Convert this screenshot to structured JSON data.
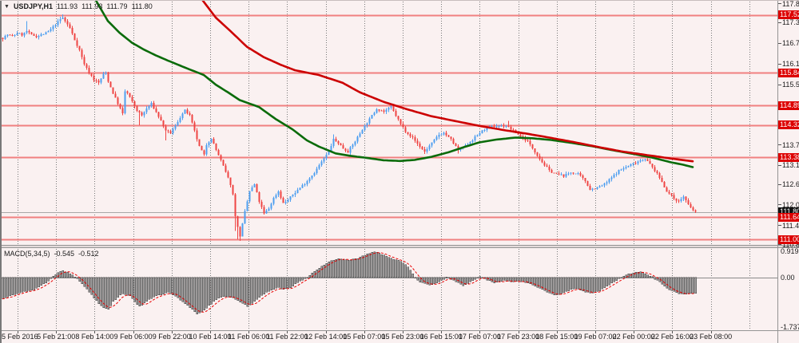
{
  "header": {
    "dropdown_icon": "▼",
    "symbol": "USDJPY,H1",
    "open": "111.93",
    "high": "111.93",
    "low": "111.79",
    "close": "111.80"
  },
  "macd_panel": {
    "label": "MACD(5,34,5)",
    "value1": "-0.545",
    "value2": "-0.512",
    "axis_labels": [
      "0.919",
      "0.00",
      "-1.737"
    ],
    "axis_values": [
      0.919,
      0.0,
      -1.737
    ]
  },
  "colors": {
    "background": "#faf1f1",
    "bull": "#4f9ff0",
    "bear": "#ef4544",
    "level_line": "#f08080",
    "level_badge_bg": "#dd0000",
    "current_badge_bg": "#101010",
    "ma_green": "#0a6b0a",
    "ma_red": "#cc0000",
    "macd_bar_fill": "#9a9a9a",
    "macd_bar_stroke": "#3d3d3d",
    "macd_signal": "#e80000",
    "grid": "#787878",
    "bid_line": "#a8a8a8",
    "text": "#1a1a1a"
  },
  "chart_data": {
    "type": "candlestick",
    "symbol": "USDJPY",
    "timeframe": "H1",
    "candle_count": 290,
    "price_axis": {
      "range_top": 117.96,
      "range_bottom": 110.77,
      "ticks": [
        117.85,
        117.3,
        116.7,
        116.1,
        115.5,
        113.75,
        113.15,
        112.6,
        112.0,
        111.4,
        110.85
      ],
      "level_lines": [
        117.52,
        115.84,
        114.89,
        114.32,
        113.38,
        111.64,
        111.0
      ],
      "current_price": 111.8
    },
    "time_axis": {
      "labels": [
        "5 Feb 2016",
        "5 Feb 21:00",
        "8 Feb 14:00",
        "9 Feb 06:00",
        "9 Feb 22:00",
        "10 Feb 14:00",
        "11 Feb 06:00",
        "11 Feb 22:00",
        "12 Feb 14:00",
        "15 Feb 07:00",
        "15 Feb 23:00",
        "16 Feb 15:00",
        "17 Feb 07:00",
        "17 Feb 23:00",
        "18 Feb 15:00",
        "19 Feb 07:00",
        "22 Feb 00:00",
        "22 Feb 16:00",
        "23 Feb 08:00"
      ]
    },
    "close_waypoints": [
      [
        0,
        116.85
      ],
      [
        2,
        116.95
      ],
      [
        4,
        116.9
      ],
      [
        6,
        117.0
      ],
      [
        8,
        116.95
      ],
      [
        10,
        117.05
      ],
      [
        12,
        116.95
      ],
      [
        14,
        116.9
      ],
      [
        16,
        116.95
      ],
      [
        18,
        117.0
      ],
      [
        20,
        117.1
      ],
      [
        22,
        117.25
      ],
      [
        24,
        117.4
      ],
      [
        25,
        117.45
      ],
      [
        26,
        117.35
      ],
      [
        28,
        117.15
      ],
      [
        30,
        116.8
      ],
      [
        32,
        116.5
      ],
      [
        34,
        116.1
      ],
      [
        36,
        115.85
      ],
      [
        38,
        115.65
      ],
      [
        40,
        115.55
      ],
      [
        42,
        115.8
      ],
      [
        43,
        115.85
      ],
      [
        44,
        115.6
      ],
      [
        46,
        115.25
      ],
      [
        48,
        114.95
      ],
      [
        50,
        114.65
      ],
      [
        51,
        115.3
      ],
      [
        52,
        115.25
      ],
      [
        54,
        115.0
      ],
      [
        56,
        114.75
      ],
      [
        58,
        114.6
      ],
      [
        60,
        114.8
      ],
      [
        62,
        114.95
      ],
      [
        64,
        114.7
      ],
      [
        66,
        114.45
      ],
      [
        68,
        114.15
      ],
      [
        70,
        114.1
      ],
      [
        72,
        114.3
      ],
      [
        74,
        114.55
      ],
      [
        76,
        114.75
      ],
      [
        78,
        114.6
      ],
      [
        80,
        114.15
      ],
      [
        82,
        113.7
      ],
      [
        84,
        113.45
      ],
      [
        85,
        113.75
      ],
      [
        87,
        113.95
      ],
      [
        89,
        113.6
      ],
      [
        91,
        113.3
      ],
      [
        93,
        112.95
      ],
      [
        95,
        112.6
      ],
      [
        96,
        112.3
      ],
      [
        97,
        111.7
      ],
      [
        98,
        111.35
      ],
      [
        99,
        111.1
      ],
      [
        100,
        111.45
      ],
      [
        101,
        111.8
      ],
      [
        102,
        112.1
      ],
      [
        103,
        112.4
      ],
      [
        105,
        112.6
      ],
      [
        107,
        112.1
      ],
      [
        109,
        111.75
      ],
      [
        111,
        111.9
      ],
      [
        113,
        112.2
      ],
      [
        115,
        112.4
      ],
      [
        117,
        112.05
      ],
      [
        119,
        112.15
      ],
      [
        121,
        112.3
      ],
      [
        124,
        112.5
      ],
      [
        127,
        112.7
      ],
      [
        130,
        112.95
      ],
      [
        133,
        113.25
      ],
      [
        136,
        113.55
      ],
      [
        138,
        113.9
      ],
      [
        140,
        113.8
      ],
      [
        142,
        113.65
      ],
      [
        144,
        113.55
      ],
      [
        147,
        113.85
      ],
      [
        150,
        114.2
      ],
      [
        153,
        114.5
      ],
      [
        156,
        114.8
      ],
      [
        159,
        114.72
      ],
      [
        162,
        114.85
      ],
      [
        164,
        114.6
      ],
      [
        166,
        114.35
      ],
      [
        168,
        114.15
      ],
      [
        171,
        113.95
      ],
      [
        174,
        113.7
      ],
      [
        176,
        113.55
      ],
      [
        179,
        113.8
      ],
      [
        182,
        114.05
      ],
      [
        184,
        114.1
      ],
      [
        187,
        113.9
      ],
      [
        190,
        113.6
      ],
      [
        193,
        113.72
      ],
      [
        196,
        113.9
      ],
      [
        199,
        114.1
      ],
      [
        202,
        114.25
      ],
      [
        206,
        114.3
      ],
      [
        210,
        114.3
      ],
      [
        213,
        114.15
      ],
      [
        216,
        114.0
      ],
      [
        219,
        113.85
      ],
      [
        222,
        113.55
      ],
      [
        225,
        113.25
      ],
      [
        228,
        113.0
      ],
      [
        231,
        112.9
      ],
      [
        234,
        112.85
      ],
      [
        237,
        112.95
      ],
      [
        240,
        112.9
      ],
      [
        243,
        112.7
      ],
      [
        245,
        112.45
      ],
      [
        248,
        112.5
      ],
      [
        251,
        112.6
      ],
      [
        254,
        112.8
      ],
      [
        257,
        113.0
      ],
      [
        260,
        113.1
      ],
      [
        263,
        113.2
      ],
      [
        266,
        113.3
      ],
      [
        268,
        113.35
      ],
      [
        271,
        113.1
      ],
      [
        274,
        112.8
      ],
      [
        277,
        112.4
      ],
      [
        280,
        112.2
      ],
      [
        282,
        112.1
      ],
      [
        284,
        112.25
      ],
      [
        286,
        112.0
      ],
      [
        288,
        111.85
      ],
      [
        289,
        111.8
      ]
    ],
    "wick_lows": [
      [
        57,
        114.32
      ],
      [
        68,
        113.88
      ],
      [
        97,
        111.25
      ],
      [
        98,
        111.0
      ],
      [
        99,
        110.95
      ],
      [
        100,
        111.1
      ],
      [
        176,
        113.48
      ],
      [
        190,
        113.5
      ]
    ],
    "wick_highs": [
      [
        10,
        117.35
      ],
      [
        25,
        117.54
      ],
      [
        138,
        114.05
      ],
      [
        162,
        114.95
      ],
      [
        211,
        114.45
      ]
    ],
    "ma_green": [
      [
        39,
        117.95
      ],
      [
        44,
        117.35
      ],
      [
        49,
        117.0
      ],
      [
        54,
        116.72
      ],
      [
        59,
        116.52
      ],
      [
        64,
        116.35
      ],
      [
        69,
        116.2
      ],
      [
        76,
        116.0
      ],
      [
        84,
        115.78
      ],
      [
        89,
        115.5
      ],
      [
        94,
        115.28
      ],
      [
        99,
        115.05
      ],
      [
        107,
        114.85
      ],
      [
        114,
        114.5
      ],
      [
        121,
        114.2
      ],
      [
        127,
        113.88
      ],
      [
        132,
        113.7
      ],
      [
        139,
        113.5
      ],
      [
        146,
        113.42
      ],
      [
        152,
        113.37
      ],
      [
        159,
        113.3
      ],
      [
        166,
        113.28
      ],
      [
        172,
        113.31
      ],
      [
        179,
        113.4
      ],
      [
        186,
        113.53
      ],
      [
        192,
        113.67
      ],
      [
        199,
        113.82
      ],
      [
        206,
        113.9
      ],
      [
        214,
        113.96
      ],
      [
        221,
        113.94
      ],
      [
        229,
        113.89
      ],
      [
        237,
        113.81
      ],
      [
        246,
        113.71
      ],
      [
        254,
        113.6
      ],
      [
        262,
        113.5
      ],
      [
        271,
        113.38
      ],
      [
        279,
        113.24
      ],
      [
        284,
        113.17
      ],
      [
        288,
        113.1
      ]
    ],
    "ma_red": [
      [
        83,
        118.0
      ],
      [
        89,
        117.45
      ],
      [
        96,
        117.0
      ],
      [
        102,
        116.6
      ],
      [
        109,
        116.3
      ],
      [
        116,
        116.08
      ],
      [
        122,
        115.92
      ],
      [
        132,
        115.78
      ],
      [
        142,
        115.55
      ],
      [
        149,
        115.28
      ],
      [
        159,
        115.0
      ],
      [
        169,
        114.78
      ],
      [
        179,
        114.58
      ],
      [
        189,
        114.44
      ],
      [
        199,
        114.3
      ],
      [
        209,
        114.18
      ],
      [
        219,
        114.07
      ],
      [
        229,
        113.95
      ],
      [
        239,
        113.82
      ],
      [
        249,
        113.68
      ],
      [
        259,
        113.55
      ],
      [
        269,
        113.45
      ],
      [
        279,
        113.35
      ],
      [
        288,
        113.27
      ]
    ],
    "macd": {
      "ylim_top": 1.06,
      "ylim_bottom": -1.87,
      "macd_last": -0.545,
      "signal_last": -0.512,
      "histogram_waypoints": [
        [
          0,
          -0.75
        ],
        [
          3,
          -0.62
        ],
        [
          6,
          -0.55
        ],
        [
          10,
          -0.48
        ],
        [
          13,
          -0.42
        ],
        [
          16,
          -0.28
        ],
        [
          19,
          -0.12
        ],
        [
          21,
          0.05
        ],
        [
          23,
          0.18
        ],
        [
          25,
          0.24
        ],
        [
          27,
          0.2
        ],
        [
          29,
          0.1
        ],
        [
          31,
          -0.05
        ],
        [
          34,
          -0.3
        ],
        [
          37,
          -0.6
        ],
        [
          40,
          -0.9
        ],
        [
          42,
          -1.05
        ],
        [
          44,
          -1.1
        ],
        [
          46,
          -0.85
        ],
        [
          48,
          -0.68
        ],
        [
          50,
          -0.55
        ],
        [
          53,
          -0.65
        ],
        [
          55,
          -0.85
        ],
        [
          57,
          -1.0
        ],
        [
          59,
          -0.9
        ],
        [
          61,
          -0.75
        ],
        [
          64,
          -0.65
        ],
        [
          67,
          -0.58
        ],
        [
          69,
          -0.52
        ],
        [
          72,
          -0.65
        ],
        [
          75,
          -0.85
        ],
        [
          78,
          -1.05
        ],
        [
          80,
          -1.18
        ],
        [
          81,
          -1.27
        ],
        [
          83,
          -1.2
        ],
        [
          85,
          -1.05
        ],
        [
          88,
          -0.85
        ],
        [
          90,
          -0.72
        ],
        [
          93,
          -0.65
        ],
        [
          96,
          -0.7
        ],
        [
          99,
          -0.85
        ],
        [
          102,
          -1.0
        ],
        [
          104,
          -0.92
        ],
        [
          106,
          -0.75
        ],
        [
          108,
          -0.62
        ],
        [
          110,
          -0.52
        ],
        [
          112,
          -0.45
        ],
        [
          115,
          -0.35
        ],
        [
          117,
          -0.42
        ],
        [
          120,
          -0.35
        ],
        [
          122,
          -0.22
        ],
        [
          124,
          -0.12
        ],
        [
          126,
          -0.03
        ],
        [
          128,
          0.08
        ],
        [
          130,
          0.2
        ],
        [
          132,
          0.32
        ],
        [
          134,
          0.45
        ],
        [
          136,
          0.55
        ],
        [
          138,
          0.62
        ],
        [
          140,
          0.66
        ],
        [
          142,
          0.63
        ],
        [
          144,
          0.6
        ],
        [
          146,
          0.63
        ],
        [
          148,
          0.68
        ],
        [
          150,
          0.75
        ],
        [
          152,
          0.82
        ],
        [
          154,
          0.88
        ],
        [
          155,
          0.9
        ],
        [
          157,
          0.85
        ],
        [
          159,
          0.78
        ],
        [
          161,
          0.7
        ],
        [
          163,
          0.65
        ],
        [
          165,
          0.6
        ],
        [
          167,
          0.52
        ],
        [
          169,
          0.38
        ],
        [
          170,
          0.25
        ],
        [
          171,
          0.12
        ],
        [
          172,
          -0.02
        ],
        [
          174,
          -0.15
        ],
        [
          176,
          -0.22
        ],
        [
          178,
          -0.26
        ],
        [
          180,
          -0.22
        ],
        [
          182,
          -0.15
        ],
        [
          184,
          -0.05
        ],
        [
          185,
          0.03
        ],
        [
          186,
          -0.02
        ],
        [
          188,
          -0.1
        ],
        [
          190,
          -0.18
        ],
        [
          192,
          -0.28
        ],
        [
          194,
          -0.2
        ],
        [
          196,
          -0.1
        ],
        [
          198,
          -0.02
        ],
        [
          199,
          0.03
        ],
        [
          201,
          -0.05
        ],
        [
          203,
          -0.12
        ],
        [
          205,
          -0.18
        ],
        [
          207,
          -0.14
        ],
        [
          209,
          -0.1
        ],
        [
          211,
          -0.12
        ],
        [
          213,
          -0.14
        ],
        [
          215,
          -0.12
        ],
        [
          217,
          -0.15
        ],
        [
          219,
          -0.18
        ],
        [
          221,
          -0.25
        ],
        [
          223,
          -0.33
        ],
        [
          225,
          -0.42
        ],
        [
          227,
          -0.52
        ],
        [
          229,
          -0.58
        ],
        [
          231,
          -0.6
        ],
        [
          233,
          -0.55
        ],
        [
          235,
          -0.48
        ],
        [
          237,
          -0.42
        ],
        [
          239,
          -0.4
        ],
        [
          241,
          -0.43
        ],
        [
          243,
          -0.5
        ],
        [
          245,
          -0.55
        ],
        [
          247,
          -0.52
        ],
        [
          249,
          -0.45
        ],
        [
          251,
          -0.35
        ],
        [
          253,
          -0.25
        ],
        [
          255,
          -0.15
        ],
        [
          257,
          -0.05
        ],
        [
          259,
          0.05
        ],
        [
          261,
          0.12
        ],
        [
          263,
          0.17
        ],
        [
          265,
          0.2
        ],
        [
          267,
          0.18
        ],
        [
          269,
          0.1
        ],
        [
          271,
          0.02
        ],
        [
          272,
          -0.05
        ],
        [
          274,
          -0.15
        ],
        [
          276,
          -0.3
        ],
        [
          278,
          -0.42
        ],
        [
          280,
          -0.5
        ],
        [
          282,
          -0.55
        ],
        [
          284,
          -0.57
        ],
        [
          286,
          -0.56
        ],
        [
          288,
          -0.55
        ],
        [
          289,
          -0.545
        ]
      ]
    }
  }
}
